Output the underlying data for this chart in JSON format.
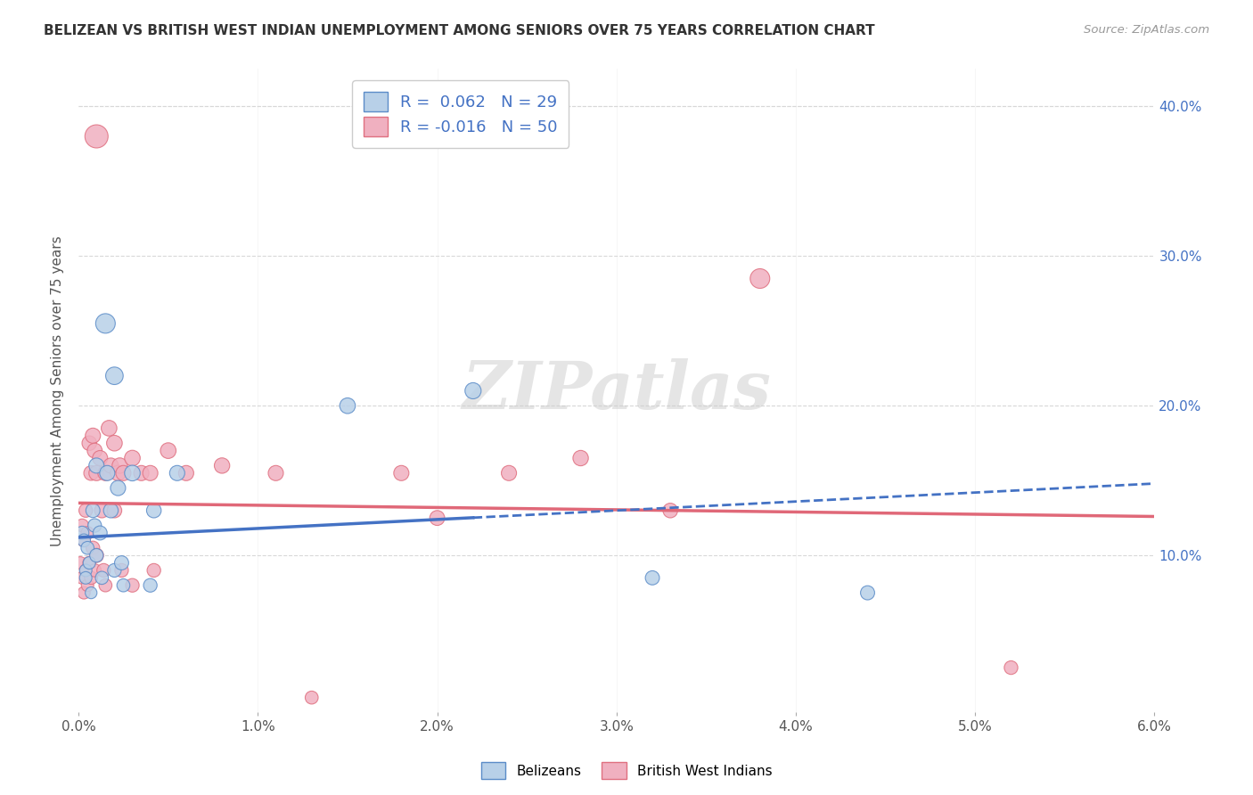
{
  "title": "BELIZEAN VS BRITISH WEST INDIAN UNEMPLOYMENT AMONG SENIORS OVER 75 YEARS CORRELATION CHART",
  "source": "Source: ZipAtlas.com",
  "ylabel": "Unemployment Among Seniors over 75 years",
  "xlim": [
    0.0,
    0.06
  ],
  "ylim": [
    -0.005,
    0.425
  ],
  "xticks": [
    0.0,
    0.01,
    0.02,
    0.03,
    0.04,
    0.05,
    0.06
  ],
  "yticks": [
    0.1,
    0.2,
    0.3,
    0.4
  ],
  "ytick_labels": [
    "10.0%",
    "20.0%",
    "30.0%",
    "40.0%"
  ],
  "xtick_labels": [
    "0.0%",
    "1.0%",
    "2.0%",
    "3.0%",
    "4.0%",
    "5.0%",
    "6.0%"
  ],
  "belizean_color": "#b8d0e8",
  "bwi_color": "#f0b0c0",
  "belizean_edge_color": "#5b8cc8",
  "bwi_edge_color": "#e07080",
  "belizean_line_color": "#4472c4",
  "bwi_line_color": "#e06878",
  "legend_blue_color": "#4472c4",
  "legend_r1": "0.062",
  "legend_n1": "29",
  "legend_r2": "-0.016",
  "legend_n2": "50",
  "belizean_x": [
    0.0002,
    0.0003,
    0.0004,
    0.0004,
    0.0005,
    0.0006,
    0.0007,
    0.0008,
    0.0009,
    0.001,
    0.001,
    0.0012,
    0.0013,
    0.0015,
    0.0016,
    0.0018,
    0.002,
    0.002,
    0.0022,
    0.0024,
    0.0025,
    0.003,
    0.004,
    0.0042,
    0.0055,
    0.015,
    0.022,
    0.032,
    0.044
  ],
  "belizean_y": [
    0.115,
    0.11,
    0.09,
    0.085,
    0.105,
    0.095,
    0.075,
    0.13,
    0.12,
    0.16,
    0.1,
    0.115,
    0.085,
    0.255,
    0.155,
    0.13,
    0.22,
    0.09,
    0.145,
    0.095,
    0.08,
    0.155,
    0.08,
    0.13,
    0.155,
    0.2,
    0.21,
    0.085,
    0.075
  ],
  "belizean_sizes": [
    120,
    110,
    100,
    100,
    110,
    100,
    90,
    130,
    120,
    150,
    120,
    130,
    110,
    250,
    150,
    140,
    200,
    120,
    150,
    130,
    110,
    160,
    120,
    140,
    150,
    160,
    170,
    130,
    130
  ],
  "bwi_x": [
    0.0001,
    0.0002,
    0.0002,
    0.0003,
    0.0003,
    0.0004,
    0.0004,
    0.0005,
    0.0005,
    0.0006,
    0.0006,
    0.0007,
    0.0007,
    0.0008,
    0.0008,
    0.0009,
    0.0009,
    0.001,
    0.001,
    0.001,
    0.0012,
    0.0013,
    0.0014,
    0.0015,
    0.0015,
    0.0017,
    0.0018,
    0.002,
    0.002,
    0.0022,
    0.0023,
    0.0024,
    0.0025,
    0.003,
    0.003,
    0.0035,
    0.004,
    0.0042,
    0.005,
    0.006,
    0.008,
    0.011,
    0.013,
    0.018,
    0.02,
    0.024,
    0.028,
    0.033,
    0.038,
    0.052
  ],
  "bwi_y": [
    0.095,
    0.12,
    0.085,
    0.11,
    0.075,
    0.13,
    0.09,
    0.115,
    0.08,
    0.175,
    0.095,
    0.155,
    0.085,
    0.18,
    0.105,
    0.17,
    0.09,
    0.38,
    0.155,
    0.1,
    0.165,
    0.13,
    0.09,
    0.155,
    0.08,
    0.185,
    0.16,
    0.175,
    0.13,
    0.155,
    0.16,
    0.09,
    0.155,
    0.165,
    0.08,
    0.155,
    0.155,
    0.09,
    0.17,
    0.155,
    0.16,
    0.155,
    0.005,
    0.155,
    0.125,
    0.155,
    0.165,
    0.13,
    0.285,
    0.025
  ],
  "bwi_sizes": [
    100,
    110,
    100,
    110,
    100,
    120,
    100,
    110,
    100,
    140,
    110,
    140,
    110,
    150,
    120,
    145,
    110,
    350,
    150,
    130,
    150,
    140,
    120,
    150,
    110,
    160,
    150,
    160,
    140,
    155,
    155,
    120,
    150,
    160,
    120,
    150,
    150,
    120,
    160,
    150,
    155,
    150,
    110,
    150,
    145,
    150,
    155,
    140,
    250,
    120
  ],
  "trend_bel_x0": 0.0,
  "trend_bel_y0": 0.112,
  "trend_bel_x1": 0.06,
  "trend_bel_y1": 0.148,
  "trend_bwi_x0": 0.0,
  "trend_bwi_y0": 0.135,
  "trend_bwi_x1": 0.06,
  "trend_bwi_y1": 0.126,
  "watermark": "ZIPatlas",
  "background_color": "#ffffff",
  "grid_color": "#d8d8d8"
}
